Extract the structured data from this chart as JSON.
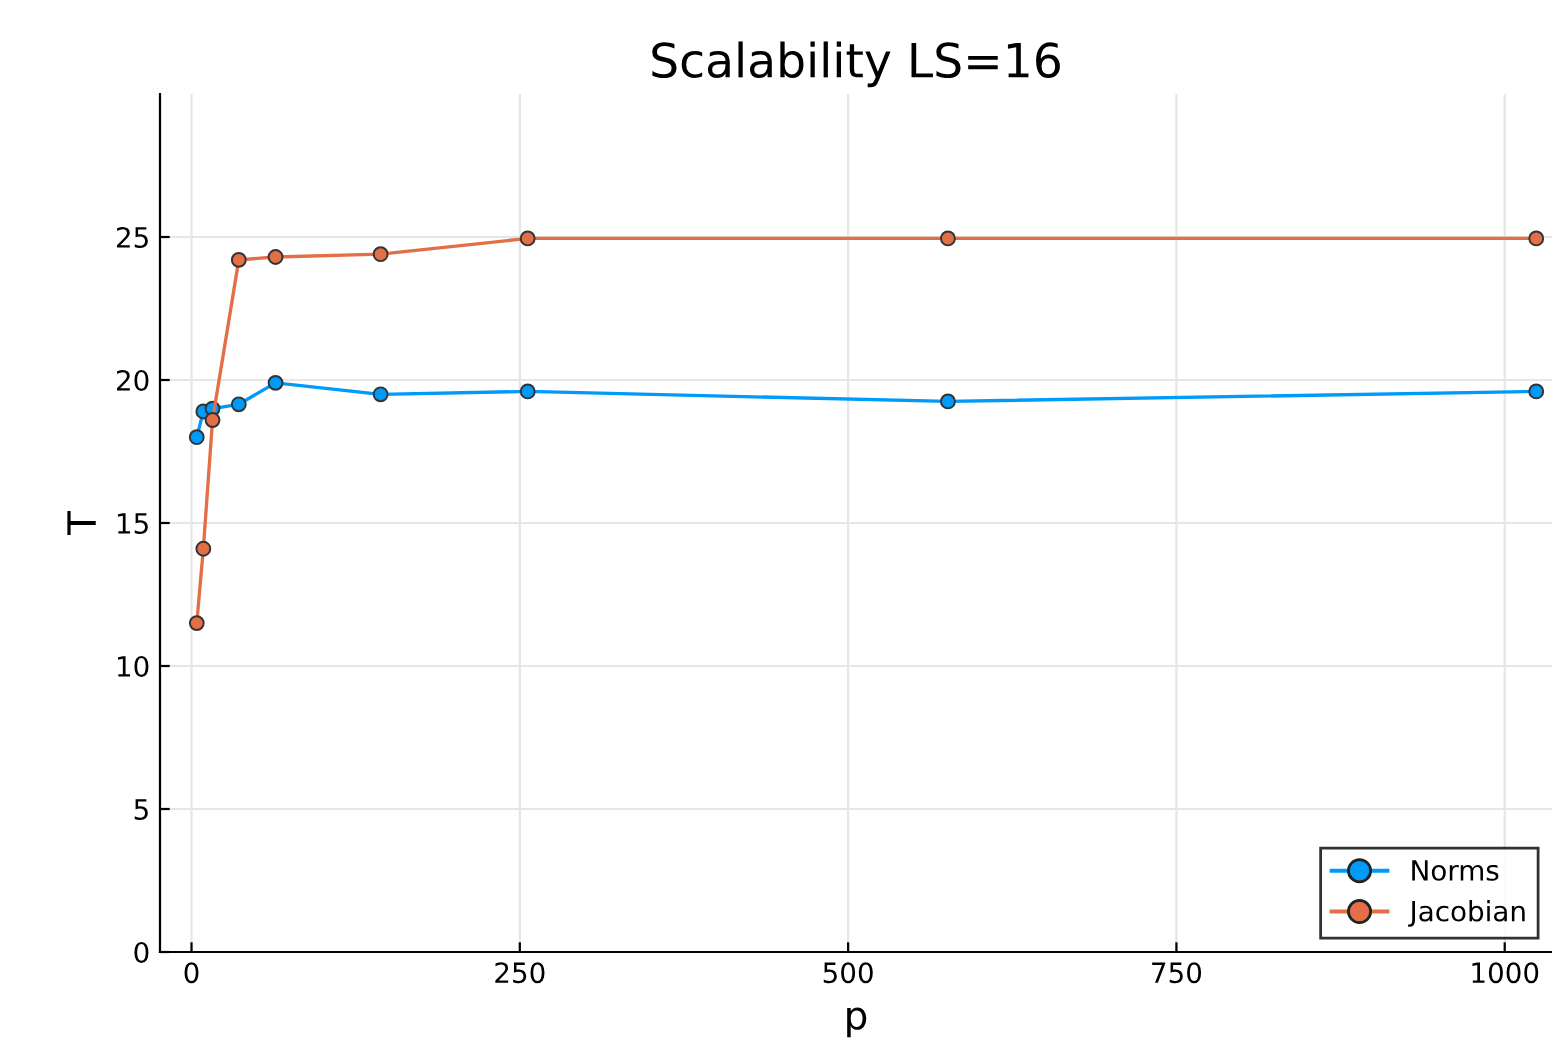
{
  "chart_data": {
    "type": "line",
    "title": "Scalability LS=16",
    "xlabel": "p",
    "ylabel": "T",
    "x": [
      4,
      9,
      16,
      36,
      64,
      144,
      256,
      576,
      1024
    ],
    "series": [
      {
        "name": "Norms",
        "color": "#009af9",
        "values": [
          18.0,
          18.9,
          19.0,
          19.15,
          19.9,
          19.5,
          19.6,
          19.25,
          19.6
        ]
      },
      {
        "name": "Jacobian",
        "color": "#e26f46",
        "values": [
          11.5,
          14.1,
          18.6,
          24.2,
          24.3,
          24.4,
          24.95,
          24.95,
          24.95
        ]
      }
    ],
    "xlim": [
      -24,
      1036
    ],
    "xticks": [
      0,
      250,
      500,
      750,
      1000
    ],
    "ylim": [
      0,
      30
    ],
    "yticks": [
      0,
      5,
      10,
      15,
      20,
      25
    ],
    "grid": true,
    "legend": "bottom right",
    "marker": "circle",
    "line_style": "solid"
  }
}
